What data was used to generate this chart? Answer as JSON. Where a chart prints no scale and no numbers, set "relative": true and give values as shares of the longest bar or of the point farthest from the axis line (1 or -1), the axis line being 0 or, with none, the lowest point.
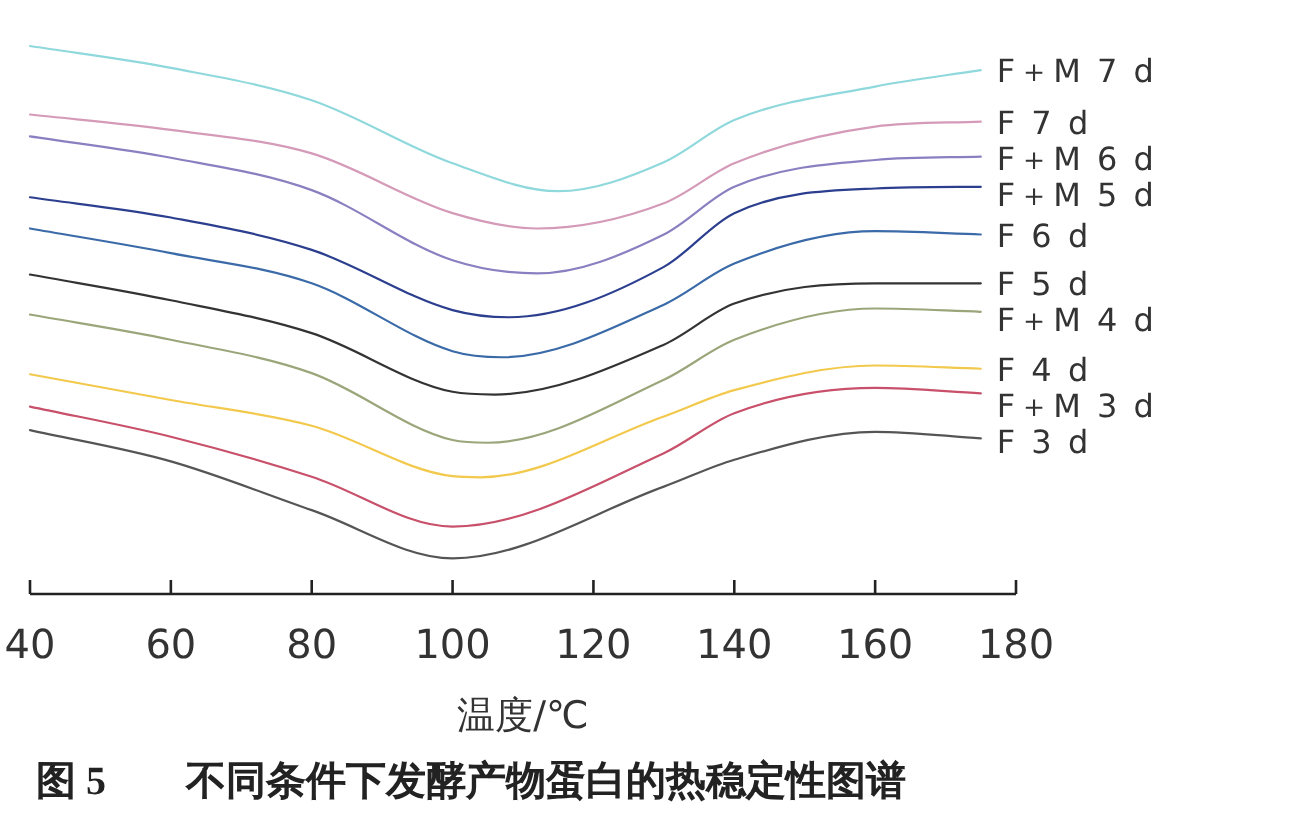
{
  "chart_data": {
    "type": "line",
    "title": "**图 5**　　**不同条件下发酵产物蛋白的热稳定性图谱**",
    "xlabel": "温度/℃",
    "xlim": [
      40,
      180
    ],
    "xticks": [
      40,
      60,
      80,
      100,
      120,
      140,
      160,
      180
    ],
    "relative": true,
    "series": [
      {
        "name": "F＋M 7 d",
        "color": "#8fd8dc",
        "x": [
          40,
          60,
          80,
          100,
          115,
          130,
          140,
          160,
          175
        ],
        "values": [
          1.0,
          0.96,
          0.901,
          0.786,
          0.735,
          0.788,
          0.865,
          0.926,
          0.956
        ]
      },
      {
        "name": "F 7 d",
        "color": "#d49ab8",
        "x": [
          40,
          60,
          80,
          100,
          112,
          130,
          140,
          160,
          175
        ],
        "values": [
          0.875,
          0.847,
          0.804,
          0.695,
          0.667,
          0.713,
          0.786,
          0.853,
          0.862
        ]
      },
      {
        "name": "F＋M 6 d",
        "color": "#8a7fc0",
        "x": [
          40,
          60,
          80,
          100,
          112,
          130,
          140,
          160,
          175
        ],
        "values": [
          0.835,
          0.796,
          0.737,
          0.609,
          0.585,
          0.656,
          0.743,
          0.792,
          0.798
        ]
      },
      {
        "name": "F＋M 5 d",
        "color": "#2c3f8f",
        "x": [
          40,
          60,
          80,
          100,
          108,
          130,
          140,
          160,
          175
        ],
        "values": [
          0.724,
          0.687,
          0.628,
          0.518,
          0.505,
          0.597,
          0.695,
          0.74,
          0.743
        ]
      },
      {
        "name": "F 6 d",
        "color": "#3a6aa8",
        "x": [
          40,
          60,
          80,
          100,
          107,
          130,
          140,
          160,
          175
        ],
        "values": [
          0.667,
          0.622,
          0.567,
          0.443,
          0.432,
          0.528,
          0.603,
          0.662,
          0.656
        ]
      },
      {
        "name": "F 5 d",
        "color": "#333333",
        "x": [
          40,
          60,
          80,
          100,
          106,
          130,
          140,
          160,
          175
        ],
        "values": [
          0.583,
          0.536,
          0.476,
          0.369,
          0.364,
          0.455,
          0.53,
          0.567,
          0.567
        ]
      },
      {
        "name": "F＋M 4 d",
        "color": "#9aa67a",
        "x": [
          40,
          60,
          80,
          100,
          105,
          130,
          140,
          160,
          175
        ],
        "values": [
          0.51,
          0.464,
          0.403,
          0.281,
          0.276,
          0.391,
          0.464,
          0.521,
          0.515
        ]
      },
      {
        "name": "F 4 d",
        "color": "#f2c94c",
        "x": [
          40,
          60,
          80,
          100,
          104,
          130,
          140,
          160,
          175
        ],
        "values": [
          0.401,
          0.354,
          0.307,
          0.215,
          0.213,
          0.324,
          0.372,
          0.417,
          0.411
        ]
      },
      {
        "name": "F＋M 3 d",
        "color": "#c8506a",
        "x": [
          40,
          60,
          80,
          100,
          130,
          140,
          160,
          175
        ],
        "values": [
          0.342,
          0.287,
          0.214,
          0.123,
          0.257,
          0.33,
          0.376,
          0.366
        ]
      },
      {
        "name": "F 3 d",
        "color": "#555555",
        "x": [
          40,
          60,
          80,
          100,
          130,
          140,
          160,
          175
        ],
        "values": [
          0.299,
          0.242,
          0.153,
          0.065,
          0.196,
          0.245,
          0.296,
          0.284
        ]
      }
    ]
  }
}
